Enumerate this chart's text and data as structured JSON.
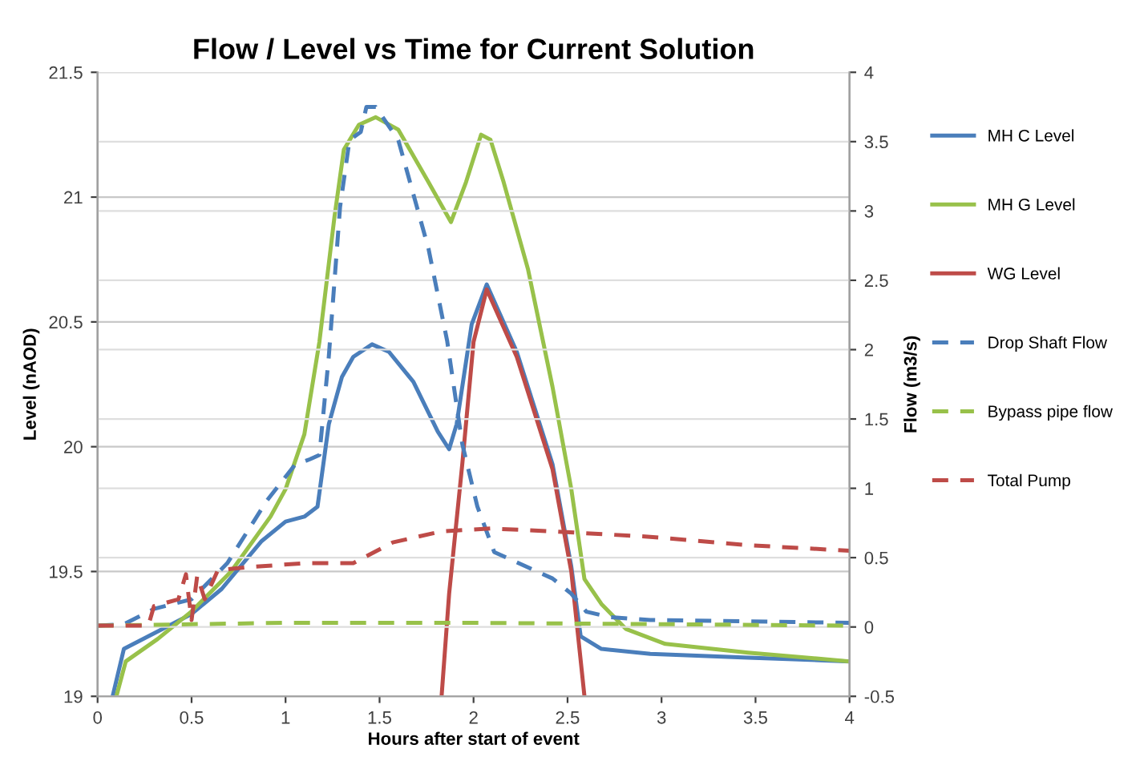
{
  "chart_data": {
    "type": "line",
    "title": "Flow / Level vs Time for Current Solution",
    "xlabel": "Hours after start of event",
    "ylabel": "Level (nAOD)",
    "y2label": "Flow (m3/s)",
    "xlim": [
      0,
      4
    ],
    "xticks": [
      0,
      0.5,
      1,
      1.5,
      2,
      2.5,
      3,
      3.5,
      4
    ],
    "ylim": [
      19,
      21.5
    ],
    "yticks": [
      19,
      19.5,
      20,
      20.5,
      21,
      21.5
    ],
    "y2lim": [
      -0.5,
      4
    ],
    "y2ticks": [
      -0.5,
      0,
      0.5,
      1,
      1.5,
      2,
      2.5,
      3,
      3.5,
      4
    ],
    "grid": "y",
    "legend": "right",
    "marker": "none",
    "series": [
      {
        "name": "MH C Level",
        "color": "#4a7ebb",
        "line_style": "solid",
        "x": [
          0.08,
          0.14,
          0.32,
          0.5,
          0.66,
          0.87,
          1.0,
          1.1,
          1.17,
          1.23,
          1.3,
          1.36,
          1.46,
          1.55,
          1.68,
          1.81,
          1.87,
          1.91,
          1.99,
          2.07,
          2.23,
          2.42,
          2.52,
          2.57,
          2.68,
          2.94,
          3.46,
          4.0
        ],
        "values": [
          19.0,
          19.19,
          19.26,
          19.33,
          19.43,
          19.62,
          19.7,
          19.72,
          19.76,
          20.09,
          20.28,
          20.36,
          20.41,
          20.38,
          20.26,
          20.06,
          19.99,
          20.09,
          20.49,
          20.65,
          20.38,
          19.93,
          19.52,
          19.24,
          19.19,
          19.17,
          19.155,
          19.14
        ]
      },
      {
        "name": "MH G Level",
        "color": "#98c14a",
        "line_style": "solid",
        "x": [
          0.1,
          0.15,
          0.32,
          0.5,
          0.71,
          0.92,
          1.0,
          1.1,
          1.18,
          1.26,
          1.31,
          1.39,
          1.48,
          1.6,
          1.76,
          1.88,
          1.96,
          2.04,
          2.09,
          2.16,
          2.29,
          2.42,
          2.52,
          2.59,
          2.68,
          2.81,
          3.02,
          3.46,
          4.0
        ],
        "values": [
          19.0,
          19.14,
          19.23,
          19.34,
          19.5,
          19.72,
          19.83,
          20.05,
          20.42,
          20.92,
          21.19,
          21.29,
          21.32,
          21.27,
          21.06,
          20.9,
          21.06,
          21.25,
          21.23,
          21.06,
          20.71,
          20.24,
          19.83,
          19.47,
          19.37,
          19.27,
          19.21,
          19.175,
          19.14
        ]
      },
      {
        "name": "WG Level",
        "color": "#be4b48",
        "line_style": "solid",
        "x": [
          1.83,
          1.87,
          1.94,
          2.0,
          2.07,
          2.23,
          2.42,
          2.52,
          2.59
        ],
        "values": [
          19.0,
          19.41,
          19.93,
          20.42,
          20.63,
          20.36,
          19.91,
          19.5,
          19.0
        ]
      },
      {
        "name": "Drop Shaft Flow",
        "color": "#4a7ebb",
        "line_style": "dashed",
        "axis": "y2",
        "x": [
          0,
          0.14,
          0.3,
          0.5,
          0.69,
          0.9,
          1.05,
          1.13,
          1.18,
          1.23,
          1.29,
          1.34,
          1.4,
          1.43,
          1.48,
          1.6,
          1.76,
          1.86,
          1.94,
          2.02,
          2.11,
          2.42,
          2.52,
          2.6,
          2.73,
          2.94,
          4.0
        ],
        "values": [
          0.01,
          0.02,
          0.13,
          0.2,
          0.46,
          0.91,
          1.17,
          1.21,
          1.24,
          1.95,
          3.03,
          3.51,
          3.57,
          3.75,
          3.75,
          3.51,
          2.73,
          2.06,
          1.32,
          0.87,
          0.54,
          0.35,
          0.24,
          0.11,
          0.07,
          0.05,
          0.03
        ]
      },
      {
        "name": "Bypass pipe flow",
        "color": "#98c14a",
        "line_style": "dashed",
        "axis": "y2",
        "x": [
          0,
          1,
          2,
          3,
          4
        ],
        "values": [
          0.01,
          0.03,
          0.03,
          0.02,
          0.01
        ]
      },
      {
        "name": "Total Pump",
        "color": "#be4b48",
        "line_style": "dashed",
        "axis": "y2",
        "x": [
          0,
          0.27,
          0.3,
          0.43,
          0.47,
          0.5,
          0.53,
          0.57,
          0.64,
          0.79,
          1.1,
          1.36,
          1.57,
          1.83,
          2.09,
          2.42,
          2.94,
          3.46,
          4.0
        ],
        "values": [
          0.01,
          0.01,
          0.15,
          0.2,
          0.38,
          0.05,
          0.37,
          0.2,
          0.41,
          0.43,
          0.46,
          0.46,
          0.61,
          0.69,
          0.71,
          0.69,
          0.65,
          0.59,
          0.55
        ]
      }
    ]
  }
}
